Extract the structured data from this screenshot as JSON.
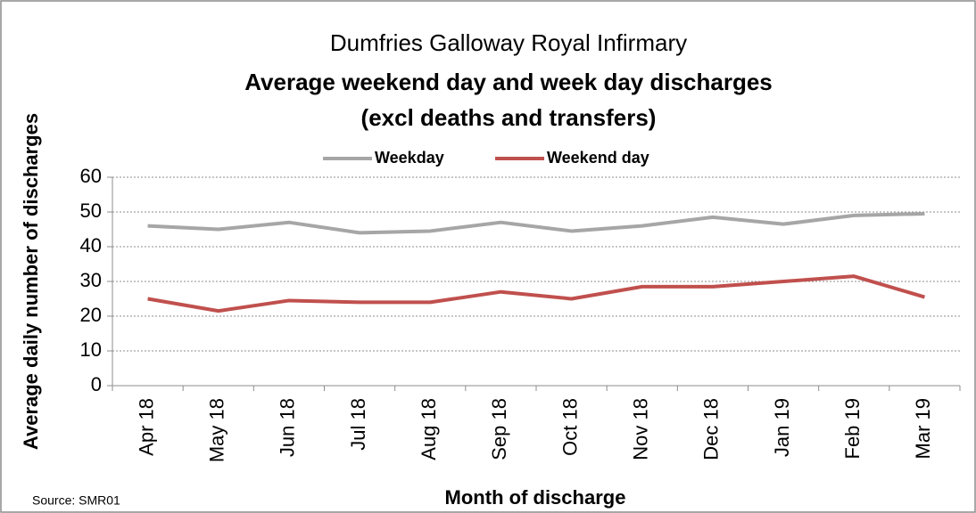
{
  "chart_data": {
    "type": "line",
    "title": [
      "Dumfries Galloway Royal Infirmary",
      "Average weekend day and week day discharges",
      "(excl deaths and transfers)"
    ],
    "x_label": "Month of discharge",
    "y_label": "Average daily number of discharges",
    "source": "Source: SMR01",
    "categories": [
      "Apr 18",
      "May 18",
      "Jun 18",
      "Jul 18",
      "Aug 18",
      "Sep 18",
      "Oct 18",
      "Nov 18",
      "Dec 18",
      "Jan 19",
      "Feb 19",
      "Mar 19"
    ],
    "series": [
      {
        "name": "Weekday",
        "color": "#a6a6a6",
        "values": [
          46,
          45,
          47,
          44,
          44.5,
          47,
          44.5,
          46,
          48.5,
          46.5,
          49,
          49.5
        ]
      },
      {
        "name": "Weekend day",
        "color": "#c0504d",
        "values": [
          25,
          21.5,
          24.5,
          24,
          24,
          27,
          25,
          28.5,
          28.5,
          30,
          31.5,
          25.5
        ]
      }
    ],
    "ylim": [
      0,
      60
    ],
    "yticks": [
      0,
      10,
      20,
      30,
      40,
      50,
      60
    ],
    "grid": true,
    "legend": "top"
  }
}
